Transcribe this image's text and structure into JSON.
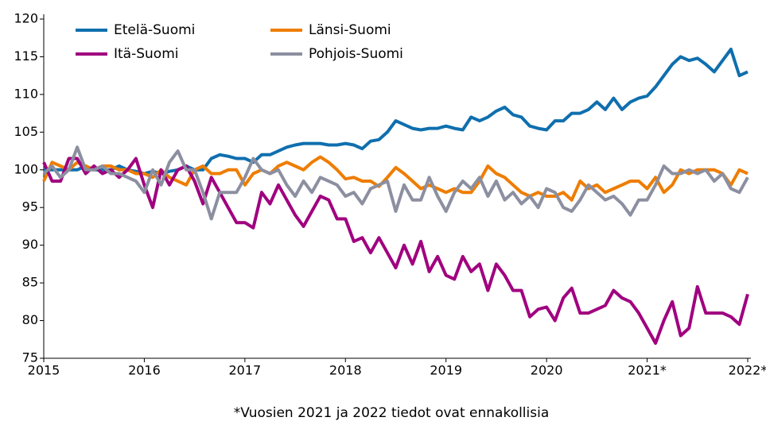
{
  "chart_data": {
    "type": "line",
    "footnote": "*Vuosien 2021 ja 2022 tiedot ovat ennakollisia",
    "categories": [
      "2015",
      null,
      null,
      null,
      null,
      null,
      null,
      null,
      null,
      null,
      null,
      null,
      "2016",
      null,
      null,
      null,
      null,
      null,
      null,
      null,
      null,
      null,
      null,
      null,
      "2017",
      null,
      null,
      null,
      null,
      null,
      null,
      null,
      null,
      null,
      null,
      null,
      "2018",
      null,
      null,
      null,
      null,
      null,
      null,
      null,
      null,
      null,
      null,
      null,
      "2019",
      null,
      null,
      null,
      null,
      null,
      null,
      null,
      null,
      null,
      null,
      null,
      "2020",
      null,
      null,
      null,
      null,
      null,
      null,
      null,
      null,
      null,
      null,
      null,
      "2021*",
      null,
      null,
      null,
      null,
      null,
      null,
      null,
      null,
      null,
      null,
      null,
      "2022*"
    ],
    "ylim": [
      75,
      120
    ],
    "yticks": [
      75,
      80,
      85,
      90,
      95,
      100,
      105,
      110,
      115,
      120
    ],
    "grid": false,
    "legend": "top-left",
    "series": [
      {
        "name": "Etelä-Suomi",
        "color": "#0f6fae",
        "values": [
          100,
          100,
          100,
          100,
          100,
          100.5,
          100,
          100,
          100,
          100.5,
          100,
          99.8,
          99.5,
          99.8,
          99.5,
          99.8,
          100,
          100.5,
          100,
          100,
          101.5,
          102,
          101.8,
          101.5,
          101.5,
          101,
          102,
          102,
          102.5,
          103,
          103.3,
          103.5,
          103.5,
          103.5,
          103.3,
          103.3,
          103.5,
          103.3,
          102.8,
          103.8,
          104,
          105,
          106.5,
          106,
          105.5,
          105.3,
          105.5,
          105.5,
          105.8,
          105.5,
          105.3,
          107,
          106.5,
          107,
          107.8,
          108.3,
          107.3,
          107,
          105.8,
          105.5,
          105.3,
          106.5,
          106.5,
          107.5,
          107.5,
          108,
          109,
          108,
          109.5,
          108,
          109,
          109.5,
          109.8,
          111,
          112.5,
          114,
          115,
          114.5,
          114.8,
          114,
          113,
          114.5,
          116,
          112.5,
          113
        ]
      },
      {
        "name": "Länsi-Suomi",
        "color": "#ee7d00",
        "values": [
          98.5,
          101,
          100.5,
          100,
          101,
          100.5,
          100,
          100.5,
          100.5,
          100,
          100,
          99.5,
          99.5,
          99,
          100,
          99,
          98.5,
          98,
          100,
          100.5,
          99.5,
          99.5,
          100,
          100,
          98,
          99.5,
          100,
          99.5,
          100.5,
          101,
          100.5,
          100,
          101,
          101.7,
          101,
          100,
          98.8,
          99,
          98.5,
          98.5,
          97.8,
          99,
          100.3,
          99.5,
          98.5,
          97.5,
          98,
          97.5,
          97,
          97.5,
          97,
          97,
          98.5,
          100.5,
          99.5,
          99,
          98,
          97,
          96.5,
          97,
          96.5,
          96.5,
          97,
          96,
          98.5,
          97.5,
          98,
          97,
          97.5,
          98,
          98.5,
          98.5,
          97.5,
          99,
          97,
          98,
          100,
          99.5,
          100,
          100,
          100,
          99.5,
          98,
          100,
          99.5
        ]
      },
      {
        "name": "Itä-Suomi",
        "color": "#a0007f",
        "values": [
          101,
          98.5,
          98.5,
          101.5,
          101.5,
          99.5,
          100.5,
          99.5,
          100,
          99,
          100,
          101.5,
          98,
          95,
          100,
          98,
          100,
          100.5,
          98.5,
          95.5,
          99,
          97,
          95,
          93,
          93,
          92.3,
          97,
          95.5,
          98,
          96,
          94,
          92.5,
          94.5,
          96.5,
          96,
          93.5,
          93.5,
          90.5,
          91,
          89,
          91,
          89,
          87,
          90,
          87.5,
          90.5,
          86.5,
          88.5,
          86,
          85.5,
          88.5,
          86.5,
          87.5,
          84,
          87.5,
          86,
          84,
          84,
          80.5,
          81.5,
          81.8,
          80,
          83,
          84.3,
          81,
          81,
          81.5,
          82,
          84,
          83,
          82.5,
          81,
          79,
          77,
          80,
          82.5,
          78,
          79,
          84.5,
          81,
          81,
          81,
          80.5,
          79.5,
          83.5
        ]
      },
      {
        "name": "Pohjois-Suomi",
        "color": "#8c8fa0",
        "values": [
          99.5,
          100.5,
          99,
          100,
          103,
          100,
          100,
          100.5,
          99.5,
          99.5,
          99,
          98.5,
          97,
          100,
          98,
          101,
          102.5,
          100,
          100,
          97,
          93.5,
          97,
          97,
          97,
          99,
          101.5,
          100,
          99.5,
          100,
          98,
          96.5,
          98.5,
          97,
          99,
          98.5,
          98,
          96.5,
          97,
          95.5,
          97.5,
          98,
          98.5,
          94.5,
          98,
          96,
          96,
          99,
          96.5,
          94.5,
          97,
          98.5,
          97.5,
          99,
          96.5,
          98.5,
          96,
          97,
          95.5,
          96.5,
          95,
          97.5,
          97,
          95,
          94.5,
          96,
          98,
          97,
          96,
          96.5,
          95.5,
          94,
          96,
          96,
          98,
          100.5,
          99.5,
          99.5,
          100,
          99.5,
          100,
          98.5,
          99.5,
          97.5,
          97,
          99
        ]
      }
    ]
  }
}
